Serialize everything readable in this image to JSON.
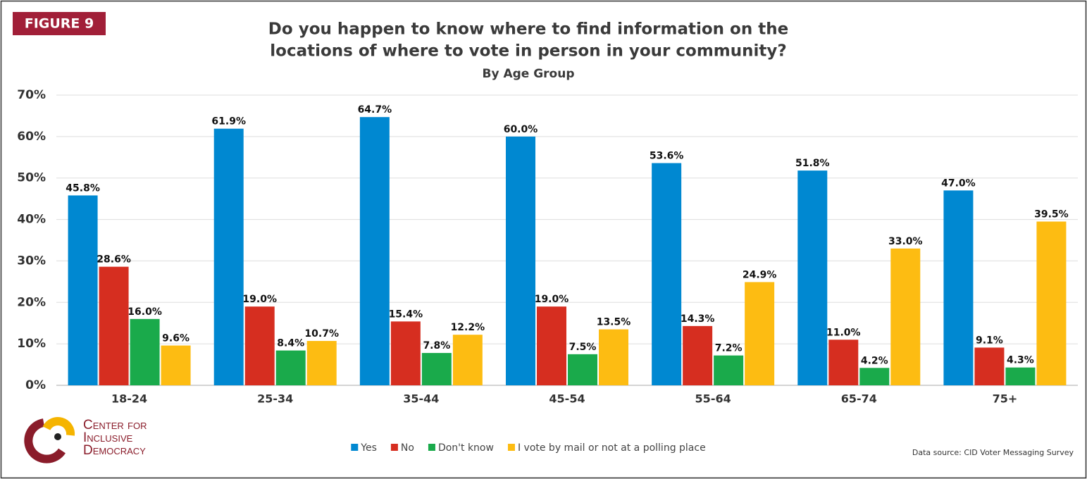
{
  "figure_label": "FIGURE 9",
  "logo": [
    "Center for",
    "Inclusive",
    "Democracy"
  ],
  "source": "Data source: CID Voter Messaging Survey",
  "chart_data": {
    "type": "bar",
    "title": [
      "Do you happen to know where to find information on the",
      "locations of where to vote in person in your community?"
    ],
    "subtitle": "By Age Group",
    "categories": [
      "18-24",
      "25-34",
      "35-44",
      "45-54",
      "55-64",
      "65-74",
      "75+"
    ],
    "series": [
      {
        "name": "Yes",
        "color": "#0088d1",
        "values": [
          45.8,
          61.9,
          64.7,
          60.0,
          53.6,
          51.8,
          47.0
        ],
        "value_labels": [
          "45.8%",
          "61.9%",
          "64.7%",
          "60.0%",
          "53.6%",
          "51.8%",
          "47.0%"
        ]
      },
      {
        "name": "No",
        "color": "#d62e20",
        "values": [
          28.6,
          19.0,
          15.4,
          19.0,
          14.3,
          11.0,
          9.1
        ],
        "value_labels": [
          "28.6%",
          "19.0%",
          "15.4%",
          "19.0%",
          "14.3%",
          "11.0%",
          "9.1%"
        ]
      },
      {
        "name": "Don't know",
        "color": "#1aaa4b",
        "values": [
          16.0,
          8.4,
          7.8,
          7.5,
          7.2,
          4.2,
          4.3
        ],
        "value_labels": [
          "16.0%",
          "8.4%",
          "7.8%",
          "7.5%",
          "7.2%",
          "4.2%",
          "4.3%"
        ]
      },
      {
        "name": "I vote by mail or not at a polling place",
        "color": "#fdbc12",
        "values": [
          9.6,
          10.7,
          12.2,
          13.5,
          24.9,
          33.0,
          39.5
        ],
        "value_labels": [
          "9.6%",
          "10.7%",
          "12.2%",
          "13.5%",
          "24.9%",
          "33.0%",
          "39.5%"
        ]
      }
    ],
    "ylim": [
      0,
      70
    ],
    "yticks": [
      {
        "value": 0,
        "label": "0%"
      },
      {
        "value": 10,
        "label": "10%"
      },
      {
        "value": 20,
        "label": "20%"
      },
      {
        "value": 30,
        "label": "30%"
      },
      {
        "value": 40,
        "label": "40%"
      },
      {
        "value": 50,
        "label": "50%"
      },
      {
        "value": 60,
        "label": "60%"
      },
      {
        "value": 70,
        "label": "70%"
      }
    ],
    "grid": true,
    "legend": "bottom"
  }
}
